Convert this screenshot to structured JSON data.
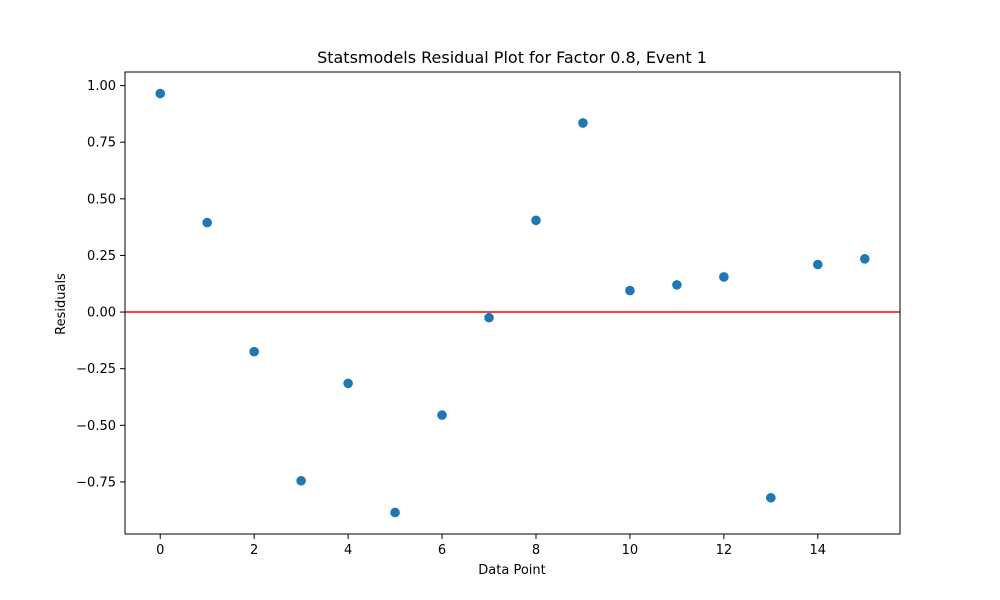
{
  "chart_data": {
    "type": "scatter",
    "title": "Statsmodels Residual Plot for Factor 0.8, Event 1",
    "xlabel": "Data Point",
    "ylabel": "Residuals",
    "xlim": [
      -0.75,
      15.75
    ],
    "ylim": [
      -0.98,
      1.06
    ],
    "x_ticks": [
      0,
      2,
      4,
      6,
      8,
      10,
      12,
      14
    ],
    "x_tick_labels": [
      "0",
      "2",
      "4",
      "6",
      "8",
      "10",
      "12",
      "14"
    ],
    "y_ticks": [
      1.0,
      0.75,
      0.5,
      0.25,
      0.0,
      -0.25,
      -0.5,
      -0.75
    ],
    "y_tick_labels": [
      "1.00",
      "0.75",
      "0.50",
      "0.25",
      "0.00",
      "−0.25",
      "−0.50",
      "−0.75"
    ],
    "grid": false,
    "reference_line": {
      "y": 0.0,
      "color": "#ff0000"
    },
    "series": [
      {
        "color": "#1f77b4",
        "x": [
          0,
          1,
          2,
          3,
          4,
          5,
          6,
          7,
          8,
          9,
          10,
          11,
          12,
          13,
          14,
          15
        ],
        "y": [
          0.965,
          0.395,
          -0.175,
          -0.745,
          -0.315,
          -0.885,
          -0.455,
          -0.025,
          0.405,
          0.835,
          0.095,
          0.12,
          0.155,
          -0.82,
          0.21,
          0.235
        ]
      }
    ]
  }
}
